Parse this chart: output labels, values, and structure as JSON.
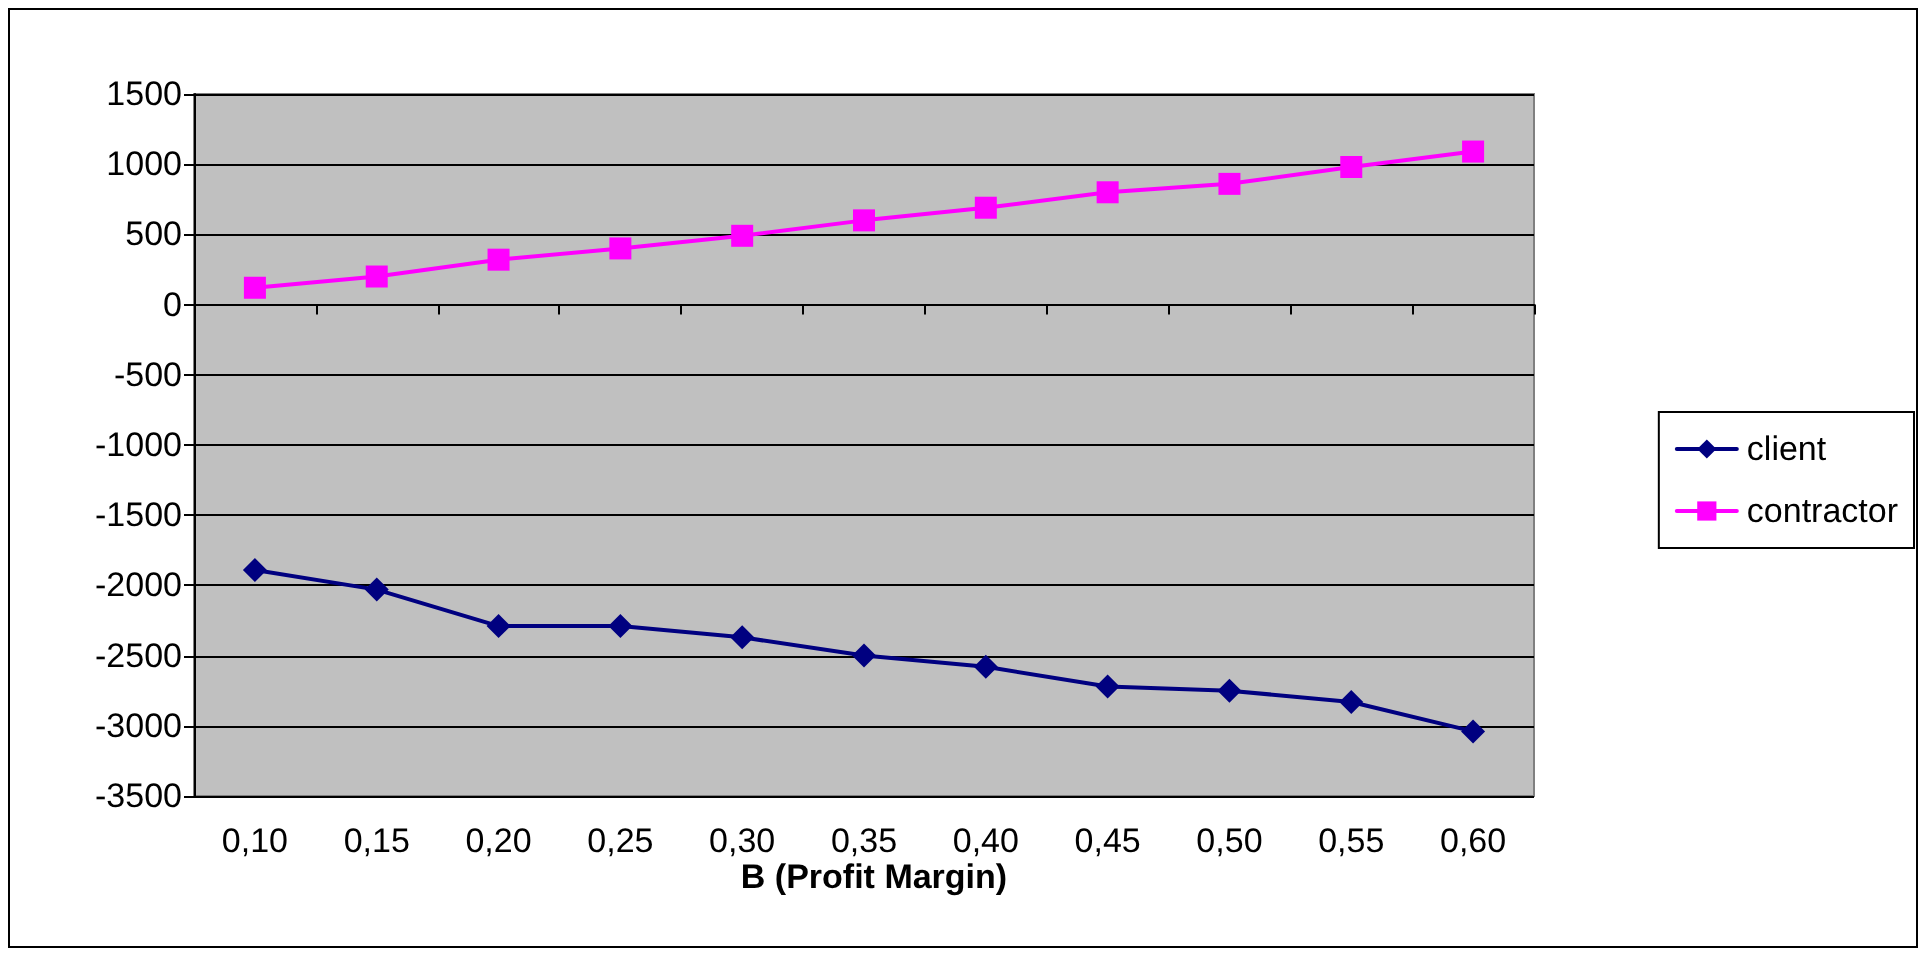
{
  "chart_data": {
    "type": "line",
    "xlabel": "B (Profit Margin)",
    "categories": [
      "0,10",
      "0,15",
      "0,20",
      "0,25",
      "0,30",
      "0,35",
      "0,40",
      "0,45",
      "0,50",
      "0,55",
      "0,60"
    ],
    "series": [
      {
        "name": "client",
        "color": "#000080",
        "marker": "diamond",
        "values": [
          -1890,
          -2030,
          -2290,
          -2290,
          -2370,
          -2500,
          -2580,
          -2720,
          -2750,
          -2830,
          -3040
        ]
      },
      {
        "name": "contractor",
        "color": "#ff00ff",
        "marker": "square",
        "values": [
          120,
          200,
          320,
          400,
          490,
          600,
          690,
          800,
          860,
          980,
          1090
        ]
      }
    ],
    "ylim": [
      -3500,
      1500
    ],
    "yticks": [
      -3500,
      -3000,
      -2500,
      -2000,
      -1500,
      -1000,
      -500,
      0,
      500,
      1000,
      1500
    ],
    "grid": "y",
    "legend": "right",
    "line_style": "solid"
  }
}
